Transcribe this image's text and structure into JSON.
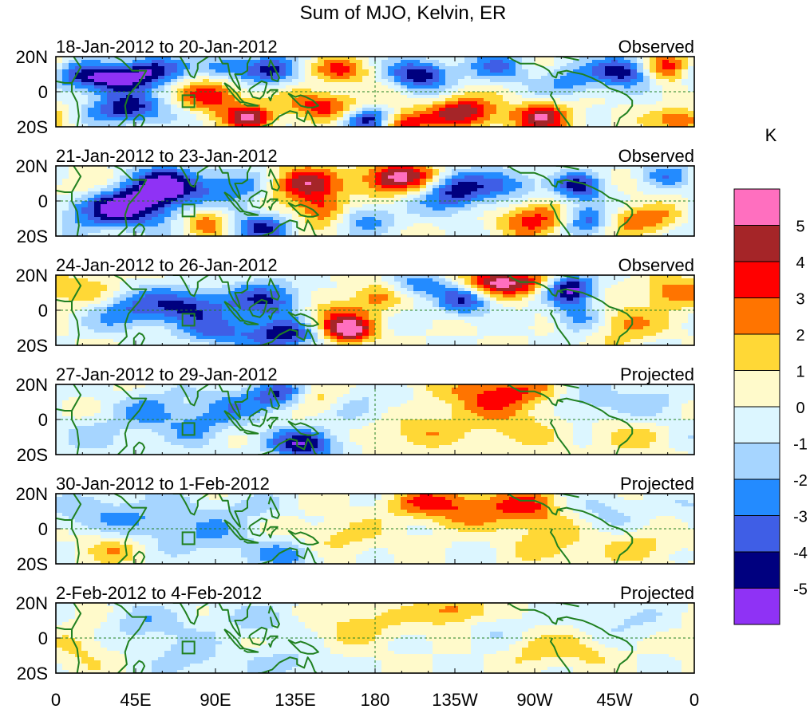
{
  "chart_data": {
    "type": "heatmap",
    "title": "Sum of MJO, Kelvin, ER",
    "colorbar": {
      "unit": "K",
      "tick_labels": [
        "5",
        "4",
        "3",
        "2",
        "1",
        "0",
        "-1",
        "-2",
        "-3",
        "-4",
        "-5"
      ],
      "colors": [
        "#ff6fbf",
        "#a52528",
        "#ff0000",
        "#ff7400",
        "#ffd836",
        "#fffacb",
        "#dcf6ff",
        "#a6d5ff",
        "#238bff",
        "#3f5ee6",
        "#00007f",
        "#8f32f5"
      ]
    },
    "x_ticks": [
      "0",
      "45E",
      "90E",
      "135E",
      "180",
      "135W",
      "90W",
      "45W",
      "0"
    ],
    "y_ticks": [
      "20N",
      "0",
      "20S"
    ],
    "x_range_deg": [
      0,
      360
    ],
    "y_range_deg": [
      -20,
      20
    ],
    "panels": [
      {
        "dates": "18-Jan-2012 to 20-Jan-2012",
        "status": "Observed",
        "amp": 1.0,
        "blobs": [
          [
            30,
            8,
            22,
            6,
            -5.5
          ],
          [
            40,
            -10,
            14,
            6,
            -5
          ],
          [
            55,
            14,
            12,
            5,
            -3
          ],
          [
            88,
            -2,
            12,
            7,
            4
          ],
          [
            95,
            14,
            10,
            5,
            -3
          ],
          [
            110,
            -15,
            9,
            5,
            5
          ],
          [
            120,
            12,
            12,
            6,
            -4
          ],
          [
            150,
            -8,
            16,
            6,
            3.5
          ],
          [
            160,
            12,
            12,
            5,
            3
          ],
          [
            175,
            -16,
            10,
            5,
            -5
          ],
          [
            195,
            -18,
            10,
            5,
            4
          ],
          [
            205,
            10,
            12,
            6,
            -5
          ],
          [
            230,
            -12,
            14,
            6,
            5
          ],
          [
            250,
            14,
            12,
            6,
            -3
          ],
          [
            275,
            -15,
            12,
            6,
            4.5
          ],
          [
            290,
            5,
            12,
            6,
            -2.5
          ],
          [
            320,
            12,
            12,
            6,
            -5
          ],
          [
            345,
            14,
            10,
            6,
            4.5
          ],
          [
            352,
            -16,
            10,
            5,
            3.5
          ]
        ]
      },
      {
        "dates": "21-Jan-2012 to 23-Jan-2012",
        "status": "Observed",
        "amp": 1.0,
        "blobs": [
          [
            35,
            -5,
            22,
            8,
            -5
          ],
          [
            60,
            8,
            16,
            8,
            -5.5
          ],
          [
            12,
            10,
            12,
            6,
            2
          ],
          [
            85,
            -12,
            10,
            6,
            3
          ],
          [
            100,
            8,
            14,
            7,
            -3
          ],
          [
            115,
            -15,
            12,
            6,
            -4
          ],
          [
            140,
            10,
            14,
            7,
            4.5
          ],
          [
            150,
            -5,
            10,
            6,
            3.5
          ],
          [
            175,
            -10,
            12,
            6,
            -2.5
          ],
          [
            185,
            12,
            12,
            6,
            3
          ],
          [
            200,
            14,
            14,
            6,
            3.5
          ],
          [
            225,
            5,
            14,
            8,
            -4.5
          ],
          [
            255,
            10,
            12,
            6,
            -3
          ],
          [
            270,
            -10,
            14,
            7,
            3.5
          ],
          [
            295,
            8,
            10,
            6,
            -4
          ],
          [
            300,
            -10,
            10,
            6,
            -4
          ],
          [
            330,
            -10,
            16,
            6,
            3
          ],
          [
            345,
            15,
            12,
            5,
            -2.5
          ]
        ]
      },
      {
        "dates": "24-Jan-2012 to 26-Jan-2012",
        "status": "Observed",
        "amp": 0.95,
        "blobs": [
          [
            15,
            10,
            14,
            8,
            2
          ],
          [
            40,
            0,
            18,
            8,
            -3
          ],
          [
            75,
            3,
            16,
            7,
            -4
          ],
          [
            90,
            -12,
            14,
            6,
            -3
          ],
          [
            120,
            5,
            16,
            8,
            -4
          ],
          [
            130,
            -14,
            16,
            6,
            -5
          ],
          [
            155,
            -5,
            14,
            8,
            3
          ],
          [
            165,
            -12,
            10,
            5,
            5
          ],
          [
            180,
            8,
            10,
            6,
            2.5
          ],
          [
            205,
            14,
            12,
            5,
            -3
          ],
          [
            230,
            5,
            10,
            6,
            -4
          ],
          [
            245,
            16,
            12,
            5,
            4.5
          ],
          [
            265,
            16,
            12,
            5,
            3.5
          ],
          [
            290,
            12,
            10,
            6,
            -5.5
          ],
          [
            295,
            -5,
            10,
            6,
            -3
          ],
          [
            320,
            -8,
            14,
            7,
            2.5
          ],
          [
            345,
            10,
            10,
            6,
            3
          ]
        ]
      },
      {
        "dates": "27-Jan-2012 to 29-Jan-2012",
        "status": "Projected",
        "amp": 0.9,
        "blobs": [
          [
            25,
            -10,
            16,
            8,
            -1.5
          ],
          [
            55,
            5,
            14,
            8,
            -2.5
          ],
          [
            80,
            -5,
            12,
            8,
            -2
          ],
          [
            100,
            8,
            14,
            8,
            -2.5
          ],
          [
            125,
            14,
            10,
            6,
            -4
          ],
          [
            140,
            -14,
            14,
            6,
            -5.5
          ],
          [
            150,
            10,
            10,
            6,
            2
          ],
          [
            175,
            5,
            18,
            8,
            -2
          ],
          [
            200,
            -5,
            24,
            8,
            2
          ],
          [
            250,
            15,
            22,
            8,
            4
          ],
          [
            260,
            -5,
            18,
            8,
            1.5
          ],
          [
            300,
            10,
            14,
            8,
            -2
          ],
          [
            320,
            -10,
            14,
            8,
            1.5
          ],
          [
            335,
            10,
            14,
            8,
            -1.5
          ]
        ]
      },
      {
        "dates": "30-Jan-2012 to 1-Feb-2012",
        "status": "Projected",
        "amp": 0.85,
        "blobs": [
          [
            20,
            8,
            20,
            8,
            -2
          ],
          [
            30,
            -12,
            12,
            6,
            2
          ],
          [
            60,
            6,
            18,
            10,
            -2
          ],
          [
            90,
            -5,
            16,
            8,
            -2
          ],
          [
            110,
            12,
            14,
            6,
            -1.5
          ],
          [
            130,
            -15,
            14,
            6,
            -3
          ],
          [
            160,
            -5,
            20,
            8,
            1.5
          ],
          [
            205,
            15,
            14,
            6,
            2.5
          ],
          [
            230,
            12,
            18,
            8,
            3
          ],
          [
            265,
            12,
            14,
            8,
            3.5
          ],
          [
            280,
            -8,
            14,
            8,
            2
          ],
          [
            310,
            10,
            14,
            8,
            -1.5
          ],
          [
            330,
            -10,
            18,
            8,
            1.5
          ]
        ]
      },
      {
        "dates": "2-Feb-2012 to 4-Feb-2012",
        "status": "Projected",
        "amp": 0.8,
        "blobs": [
          [
            15,
            -5,
            12,
            10,
            1.5
          ],
          [
            50,
            8,
            18,
            8,
            -2
          ],
          [
            75,
            -12,
            14,
            8,
            -2
          ],
          [
            115,
            10,
            22,
            8,
            -1.5
          ],
          [
            130,
            -15,
            14,
            6,
            -2
          ],
          [
            170,
            8,
            18,
            8,
            2
          ],
          [
            225,
            15,
            14,
            6,
            3.5
          ],
          [
            250,
            5,
            16,
            8,
            -1.5
          ],
          [
            270,
            -5,
            14,
            8,
            2
          ],
          [
            300,
            -8,
            12,
            6,
            1.5
          ],
          [
            320,
            10,
            14,
            8,
            -1.5
          ]
        ]
      }
    ]
  }
}
